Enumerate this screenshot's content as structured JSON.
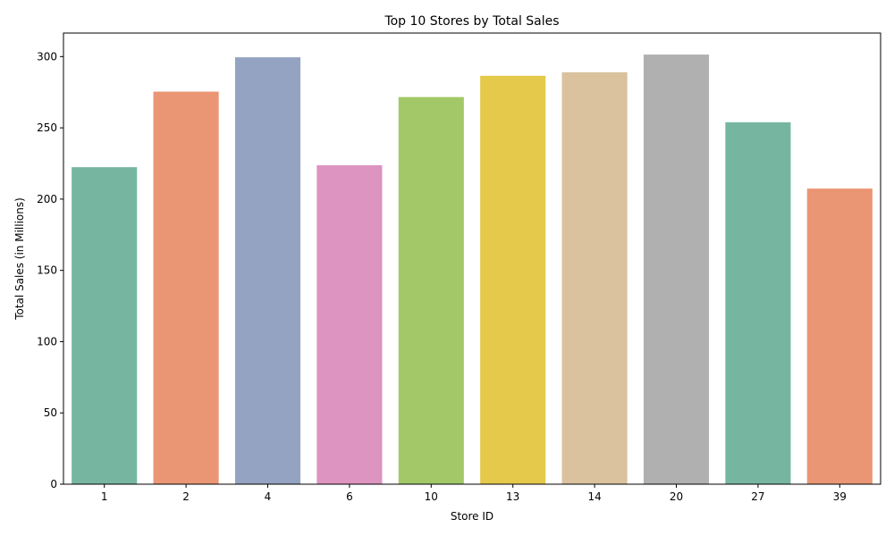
{
  "chart_data": {
    "type": "bar",
    "title": "Top 10 Stores by Total Sales",
    "xlabel": "Store ID",
    "ylabel": "Total Sales (in Millions)",
    "categories": [
      "1",
      "2",
      "4",
      "6",
      "10",
      "13",
      "14",
      "20",
      "27",
      "39"
    ],
    "values": [
      222.4,
      275.4,
      299.5,
      223.8,
      271.6,
      286.5,
      289.0,
      301.4,
      253.9,
      207.4
    ],
    "colors": [
      "#76b6a1",
      "#ea9674",
      "#94a3c1",
      "#dd94c0",
      "#a3c867",
      "#e4c94b",
      "#d9c29d",
      "#b0b0b0",
      "#76b6a1",
      "#ea9674"
    ],
    "ylim": [
      0,
      316.5
    ],
    "yticks": [
      0,
      50,
      100,
      150,
      200,
      250,
      300
    ],
    "grid": false,
    "legend": "none"
  }
}
